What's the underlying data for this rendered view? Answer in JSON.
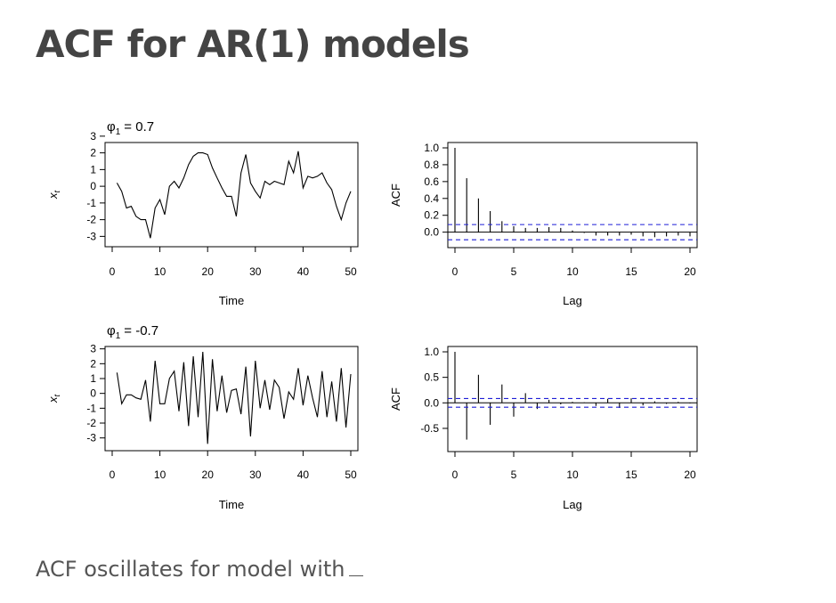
{
  "slide": {
    "title": "ACF for AR(1) models",
    "caption": "ACF oscillates for model with"
  },
  "chart_data": [
    {
      "type": "line",
      "panel": "ts-positive",
      "title_symbol": "φ",
      "title_subscript": "1",
      "title_value": "= 0.7",
      "xlabel": "Time",
      "ylabel": "x",
      "ylabel_subscript": "t",
      "xlim": [
        0,
        50
      ],
      "ylim": [
        -3.3,
        2.3
      ],
      "xticks": [
        0,
        10,
        20,
        30,
        40,
        50
      ],
      "yticks": [
        -3,
        -2,
        -1,
        0,
        1,
        2,
        3
      ],
      "x": [
        1,
        2,
        3,
        4,
        5,
        6,
        7,
        8,
        9,
        10,
        11,
        12,
        13,
        14,
        15,
        16,
        17,
        18,
        19,
        20,
        21,
        22,
        23,
        24,
        25,
        26,
        27,
        28,
        29,
        30,
        31,
        32,
        33,
        34,
        35,
        36,
        37,
        38,
        39,
        40,
        41,
        42,
        43,
        44,
        45,
        46,
        47,
        48,
        49,
        50
      ],
      "y": [
        0.2,
        -0.3,
        -1.3,
        -1.2,
        -1.8,
        -2.0,
        -2.0,
        -3.1,
        -1.3,
        -0.8,
        -1.7,
        0.0,
        0.3,
        -0.1,
        0.5,
        1.3,
        1.8,
        2.0,
        2.0,
        1.9,
        1.1,
        0.5,
        -0.1,
        -0.6,
        -0.6,
        -1.8,
        0.8,
        1.9,
        0.2,
        -0.3,
        -0.7,
        0.3,
        0.1,
        0.3,
        0.2,
        0.1,
        1.5,
        0.8,
        2.1,
        -0.1,
        0.6,
        0.5,
        0.6,
        0.8,
        0.2,
        -0.2,
        -1.2,
        -2.0,
        -1.0,
        -0.3
      ],
      "grid": false
    },
    {
      "type": "bar",
      "panel": "acf-positive",
      "xlabel": "Lag",
      "ylabel": "ACF",
      "xlim": [
        0,
        20
      ],
      "ylim": [
        -0.12,
        1.0
      ],
      "xticks": [
        0,
        5,
        10,
        15,
        20
      ],
      "yticks": [
        0.0,
        0.2,
        0.4,
        0.6,
        0.8,
        1.0
      ],
      "ytick_labels": [
        "0.0",
        "0.2",
        "0.4",
        "0.6",
        "0.8",
        "1.0"
      ],
      "lags": [
        0,
        1,
        2,
        3,
        4,
        5,
        6,
        7,
        8,
        9,
        10,
        11,
        12,
        13,
        14,
        15,
        16,
        17,
        18,
        19,
        20
      ],
      "values": [
        1.0,
        0.64,
        0.4,
        0.25,
        0.13,
        0.07,
        0.05,
        0.05,
        0.06,
        0.05,
        0.02,
        -0.01,
        -0.04,
        -0.04,
        -0.04,
        -0.03,
        -0.05,
        -0.06,
        -0.05,
        -0.04,
        -0.05
      ],
      "confidence_band": 0.09,
      "band_color": "#1f1fd6",
      "grid": false
    },
    {
      "type": "line",
      "panel": "ts-negative",
      "title_symbol": "φ",
      "title_subscript": "1",
      "title_value": "= -0.7",
      "xlabel": "Time",
      "ylabel": "x",
      "ylabel_subscript": "t",
      "xlim": [
        0,
        50
      ],
      "ylim": [
        -3.5,
        2.8
      ],
      "xticks": [
        0,
        10,
        20,
        30,
        40,
        50
      ],
      "yticks": [
        -3,
        -2,
        -1,
        0,
        1,
        2,
        3
      ],
      "x": [
        1,
        2,
        3,
        4,
        5,
        6,
        7,
        8,
        9,
        10,
        11,
        12,
        13,
        14,
        15,
        16,
        17,
        18,
        19,
        20,
        21,
        22,
        23,
        24,
        25,
        26,
        27,
        28,
        29,
        30,
        31,
        32,
        33,
        34,
        35,
        36,
        37,
        38,
        39,
        40,
        41,
        42,
        43,
        44,
        45,
        46,
        47,
        48,
        49,
        50
      ],
      "y": [
        1.4,
        -0.7,
        -0.1,
        -0.1,
        -0.3,
        -0.4,
        0.9,
        -1.9,
        2.2,
        -0.7,
        -0.7,
        1.0,
        1.5,
        -1.2,
        2.1,
        -2.2,
        2.5,
        -1.6,
        2.8,
        -3.4,
        2.3,
        -1.2,
        1.2,
        -1.3,
        0.2,
        0.3,
        -1.4,
        1.8,
        -2.9,
        2.2,
        -1.0,
        0.9,
        -1.1,
        0.9,
        0.4,
        -1.7,
        0.1,
        -0.4,
        1.7,
        -0.8,
        1.2,
        -0.3,
        -1.6,
        1.5,
        -1.6,
        0.8,
        -1.9,
        1.7,
        -2.3,
        1.3
      ],
      "grid": false
    },
    {
      "type": "bar",
      "panel": "acf-negative",
      "xlabel": "Lag",
      "ylabel": "ACF",
      "xlim": [
        0,
        20
      ],
      "ylim": [
        -0.85,
        1.0
      ],
      "xticks": [
        0,
        5,
        10,
        15,
        20
      ],
      "yticks": [
        -0.5,
        0.0,
        0.5,
        1.0
      ],
      "ytick_labels": [
        "-0.5",
        "0.0",
        "0.5",
        "1.0"
      ],
      "lags": [
        0,
        1,
        2,
        3,
        4,
        5,
        6,
        7,
        8,
        9,
        10,
        11,
        12,
        13,
        14,
        15,
        16,
        17,
        18,
        19,
        20
      ],
      "values": [
        1.0,
        -0.72,
        0.55,
        -0.43,
        0.36,
        -0.27,
        0.19,
        -0.12,
        0.06,
        -0.03,
        0.02,
        0.01,
        -0.06,
        0.08,
        -0.1,
        0.09,
        -0.05,
        0.03,
        -0.02,
        0.02,
        -0.01
      ],
      "confidence_band": 0.085,
      "band_color": "#1f1fd6",
      "grid": false
    }
  ]
}
